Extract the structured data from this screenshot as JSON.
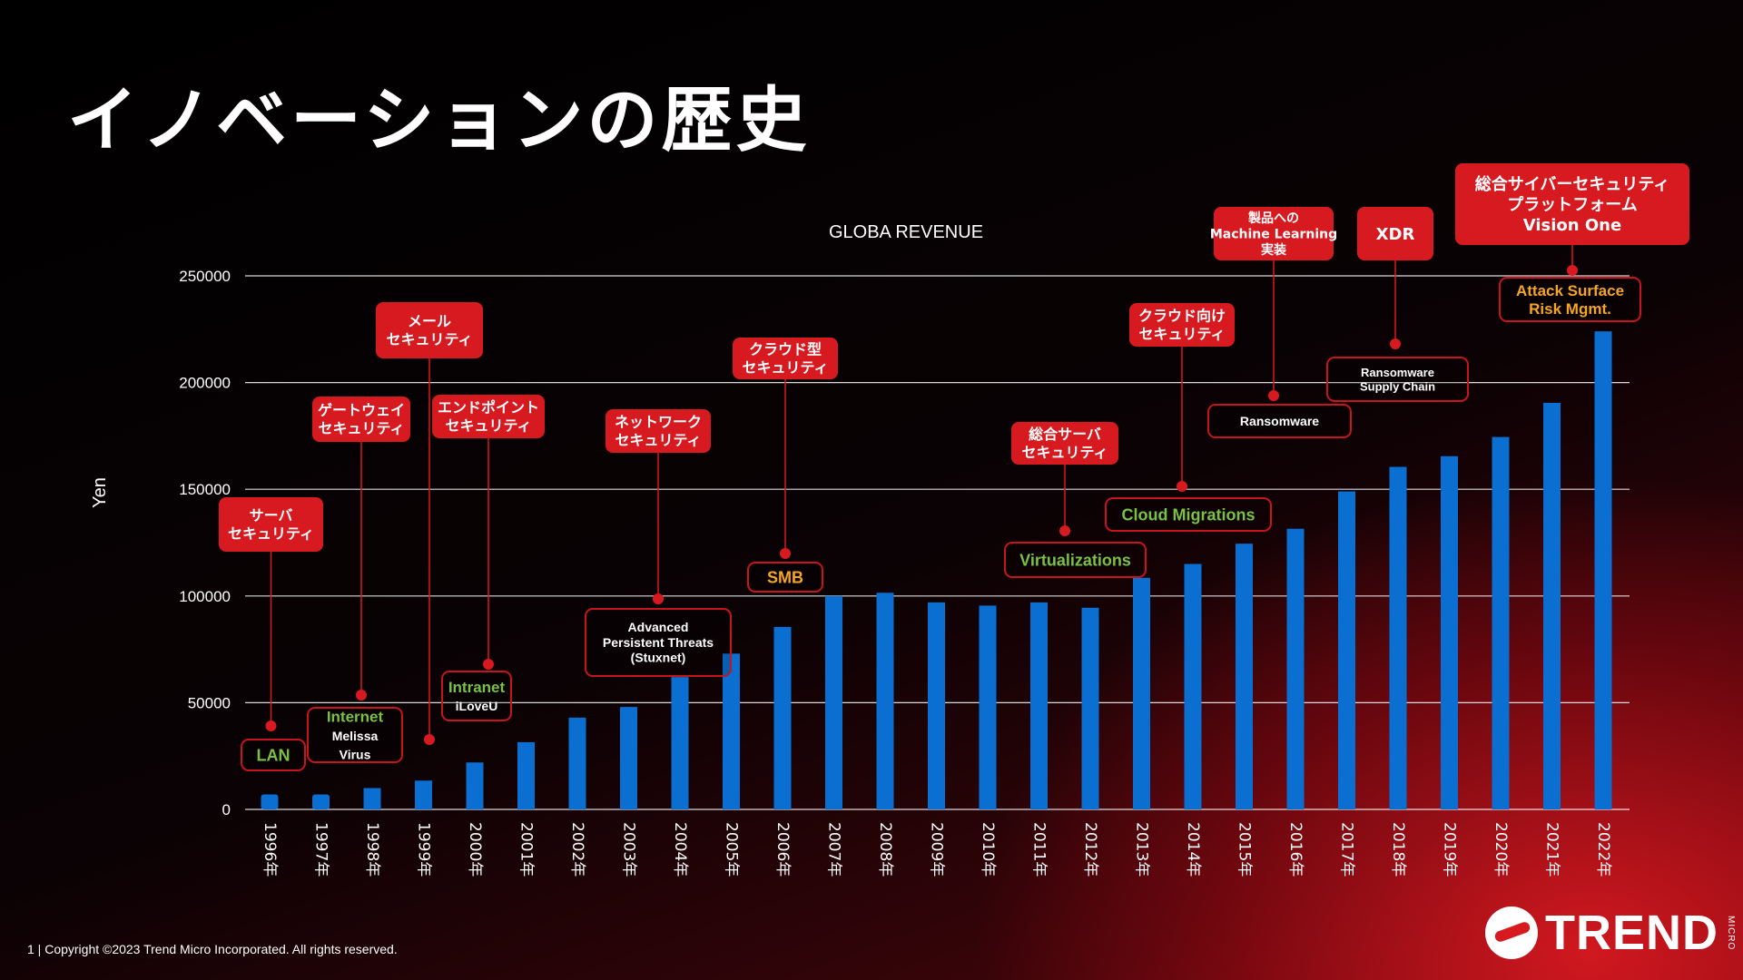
{
  "page": {
    "title": "イノベーションの歴史",
    "footer": "1 | Copyright ©2023 Trend Micro Incorporated. All rights reserved.",
    "logo_text": "TREND",
    "logo_micro": "MICRO"
  },
  "colors": {
    "bar": "#0a6fd0",
    "callout_red": "#d71920",
    "threat_border": "#c8141c",
    "green_text": "#7ac143",
    "orange_text": "#f5a623",
    "grid": "#ffffff"
  },
  "chart_data": {
    "type": "bar",
    "title": "GLOBA REVENUE",
    "xlabel": "",
    "ylabel": "Yen",
    "ylim": [
      0,
      250000
    ],
    "yticks": [
      0,
      50000,
      100000,
      150000,
      200000,
      250000
    ],
    "grid": true,
    "categories": [
      "1996年",
      "1997年",
      "1998年",
      "1999年",
      "2000年",
      "2001年",
      "2002年",
      "2003年",
      "2004年",
      "2005年",
      "2006年",
      "2007年",
      "2008年",
      "2009年",
      "2010年",
      "2011年",
      "2012年",
      "2013年",
      "2014年",
      "2015年",
      "2016年",
      "2017年",
      "2018年",
      "2019年",
      "2020年",
      "2021年",
      "2022年"
    ],
    "values": [
      7000,
      7000,
      10000,
      13500,
      22000,
      31500,
      43000,
      48000,
      62000,
      73000,
      85500,
      100000,
      101500,
      97000,
      95500,
      97000,
      94500,
      108500,
      115000,
      124500,
      131500,
      149000,
      160500,
      165500,
      174500,
      190500,
      224000
    ],
    "annotations": [
      {
        "year": "1996年",
        "product": [
          "サーバ",
          "セキュリティ"
        ],
        "threat": [
          "LAN"
        ],
        "threat_style": "green"
      },
      {
        "year": "1998年",
        "product": [
          "ゲートウェイ",
          "セキュリティ"
        ],
        "threat": [
          "Internet",
          "Melissa",
          "Virus"
        ],
        "threat_style": "green-head"
      },
      {
        "year": "1999年",
        "product": [
          "メール",
          "セキュリティ"
        ],
        "threat": [],
        "threat_style": ""
      },
      {
        "year": "2000年",
        "product": [
          "エンドポイント",
          "セキュリティ"
        ],
        "threat": [
          "Intranet",
          "iLoveU"
        ],
        "threat_style": "green-head"
      },
      {
        "year": "2004年",
        "product": [
          "ネットワーク",
          "セキュリティ"
        ],
        "threat": [
          "Advanced",
          "Persistent Threats",
          "(Stuxnet)"
        ],
        "threat_style": "white"
      },
      {
        "year": "2006年",
        "product": [
          "クラウド型",
          "セキュリティ"
        ],
        "threat": [
          "SMB"
        ],
        "threat_style": "orange"
      },
      {
        "year": "2011年",
        "product": [
          "総合サーバ",
          "セキュリティ"
        ],
        "threat": [
          "Virtualizations"
        ],
        "threat_style": "green"
      },
      {
        "year": "2014年",
        "product": [
          "クラウド向け",
          "セキュリティ"
        ],
        "threat": [
          "Cloud Migrations"
        ],
        "threat_style": "green"
      },
      {
        "year": "2016年",
        "product": [
          "製品への",
          "Machine Learning",
          "実装"
        ],
        "threat": [
          "Ransomware"
        ],
        "threat_style": "white"
      },
      {
        "year": "2018年",
        "product": [
          "XDR"
        ],
        "threat": [
          "Ransomware",
          "Supply Chain"
        ],
        "threat_style": "white"
      },
      {
        "year": "2022年",
        "product": [
          "総合サイバーセキュリティ",
          "プラットフォーム",
          "Vision One"
        ],
        "threat": [
          "Attack Surface",
          "Risk Mgmt."
        ],
        "threat_style": "orange"
      }
    ]
  }
}
